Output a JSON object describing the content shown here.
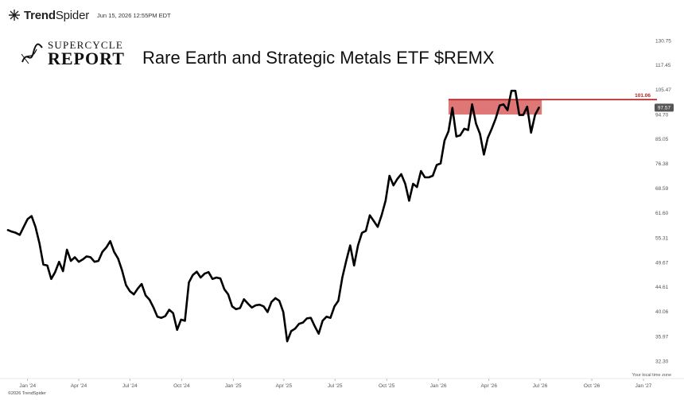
{
  "header": {
    "brand_bold": "Trend",
    "brand_light": "Spider",
    "timestamp": "Jun 15, 2026 12:55PM EDT"
  },
  "logo": {
    "top": "SUPERCYCLE",
    "bottom": "REPORT"
  },
  "footer": {
    "timezone_note": "Your local time zone",
    "copyright": "©2026 TrendSpider"
  },
  "chart_data": {
    "type": "line",
    "title": "Rare Earth and Strategic Metals ETF $REMX",
    "xlabel": "",
    "ylabel": "",
    "y_scale": "log",
    "y_ticks": [
      "130.75",
      "117.45",
      "105.47",
      "94.70",
      "85.05",
      "76.38",
      "68.59",
      "61.60",
      "55.31",
      "49.67",
      "44.61",
      "40.06",
      "35.97",
      "32.30"
    ],
    "x_ticks": [
      "Jan '24",
      "Apr '24",
      "Jul '24",
      "Oct '24",
      "Jan '25",
      "Apr '25",
      "Jul '25",
      "Oct '25",
      "Jan '26",
      "Apr '26",
      "Jul '26",
      "Oct '26",
      "Jan '27"
    ],
    "x_range": [
      "2023-11-27",
      "2027-01-25"
    ],
    "series": [
      {
        "values": [
          [
            "2023-11-27",
            57.2
          ],
          [
            "2023-12-04",
            56.8
          ],
          [
            "2023-12-11",
            56.5
          ],
          [
            "2023-12-18",
            56.0
          ],
          [
            "2023-12-25",
            58.0
          ],
          [
            "2024-01-01",
            60.0
          ],
          [
            "2024-01-08",
            60.8
          ],
          [
            "2024-01-15",
            58.0
          ],
          [
            "2024-01-22",
            54.0
          ],
          [
            "2024-01-29",
            49.2
          ],
          [
            "2024-02-05",
            49.0
          ],
          [
            "2024-02-12",
            46.2
          ],
          [
            "2024-02-19",
            47.6
          ],
          [
            "2024-02-26",
            49.8
          ],
          [
            "2024-03-04",
            47.8
          ],
          [
            "2024-03-11",
            52.5
          ],
          [
            "2024-03-18",
            50.0
          ],
          [
            "2024-03-25",
            50.8
          ],
          [
            "2024-04-01",
            49.8
          ],
          [
            "2024-04-08",
            50.3
          ],
          [
            "2024-04-15",
            51.0
          ],
          [
            "2024-04-22",
            50.8
          ],
          [
            "2024-04-29",
            49.8
          ],
          [
            "2024-05-06",
            50.0
          ],
          [
            "2024-05-13",
            52.0
          ],
          [
            "2024-05-20",
            53.0
          ],
          [
            "2024-05-27",
            54.5
          ],
          [
            "2024-06-03",
            52.0
          ],
          [
            "2024-06-10",
            50.5
          ],
          [
            "2024-06-17",
            48.0
          ],
          [
            "2024-06-24",
            45.0
          ],
          [
            "2024-07-01",
            43.8
          ],
          [
            "2024-07-08",
            43.2
          ],
          [
            "2024-07-15",
            44.3
          ],
          [
            "2024-07-22",
            45.2
          ],
          [
            "2024-07-29",
            43.0
          ],
          [
            "2024-08-05",
            42.2
          ],
          [
            "2024-08-12",
            40.8
          ],
          [
            "2024-08-19",
            39.2
          ],
          [
            "2024-08-26",
            39.0
          ],
          [
            "2024-09-02",
            39.3
          ],
          [
            "2024-09-09",
            40.4
          ],
          [
            "2024-09-16",
            39.8
          ],
          [
            "2024-09-23",
            37.0
          ],
          [
            "2024-09-30",
            38.7
          ],
          [
            "2024-10-07",
            38.5
          ],
          [
            "2024-10-14",
            45.5
          ],
          [
            "2024-10-21",
            47.0
          ],
          [
            "2024-10-28",
            47.7
          ],
          [
            "2024-11-04",
            46.5
          ],
          [
            "2024-11-11",
            47.3
          ],
          [
            "2024-11-18",
            47.6
          ],
          [
            "2024-11-25",
            46.2
          ],
          [
            "2024-12-02",
            46.5
          ],
          [
            "2024-12-09",
            46.3
          ],
          [
            "2024-12-16",
            44.2
          ],
          [
            "2024-12-23",
            43.2
          ],
          [
            "2024-12-30",
            41.0
          ],
          [
            "2025-01-06",
            40.5
          ],
          [
            "2025-01-13",
            40.7
          ],
          [
            "2025-01-20",
            42.3
          ],
          [
            "2025-01-27",
            41.5
          ],
          [
            "2025-02-03",
            40.8
          ],
          [
            "2025-02-10",
            41.2
          ],
          [
            "2025-02-17",
            41.3
          ],
          [
            "2025-02-24",
            41.0
          ],
          [
            "2025-03-03",
            40.0
          ],
          [
            "2025-03-10",
            41.8
          ],
          [
            "2025-03-17",
            42.5
          ],
          [
            "2025-03-24",
            42.0
          ],
          [
            "2025-03-31",
            40.0
          ],
          [
            "2025-04-07",
            35.2
          ],
          [
            "2025-04-14",
            36.8
          ],
          [
            "2025-04-21",
            37.2
          ],
          [
            "2025-04-28",
            38.0
          ],
          [
            "2025-05-05",
            38.2
          ],
          [
            "2025-05-12",
            38.9
          ],
          [
            "2025-05-19",
            39.0
          ],
          [
            "2025-05-26",
            37.6
          ],
          [
            "2025-06-02",
            36.4
          ],
          [
            "2025-06-09",
            38.5
          ],
          [
            "2025-06-16",
            39.2
          ],
          [
            "2025-06-23",
            39.0
          ],
          [
            "2025-06-30",
            41.0
          ],
          [
            "2025-07-07",
            42.0
          ],
          [
            "2025-07-14",
            46.5
          ],
          [
            "2025-07-21",
            50.0
          ],
          [
            "2025-07-28",
            53.5
          ],
          [
            "2025-08-04",
            49.0
          ],
          [
            "2025-08-11",
            53.5
          ],
          [
            "2025-08-18",
            56.5
          ],
          [
            "2025-08-25",
            57.0
          ],
          [
            "2025-09-01",
            61.0
          ],
          [
            "2025-09-08",
            59.5
          ],
          [
            "2025-09-15",
            58.0
          ],
          [
            "2025-09-22",
            61.0
          ],
          [
            "2025-09-29",
            65.0
          ],
          [
            "2025-10-06",
            72.5
          ],
          [
            "2025-10-13",
            69.5
          ],
          [
            "2025-10-20",
            71.5
          ],
          [
            "2025-10-27",
            73.0
          ],
          [
            "2025-11-03",
            70.0
          ],
          [
            "2025-11-10",
            65.0
          ],
          [
            "2025-11-17",
            70.0
          ],
          [
            "2025-11-24",
            69.0
          ],
          [
            "2025-12-01",
            74.0
          ],
          [
            "2025-12-08",
            72.0
          ],
          [
            "2025-12-15",
            72.0
          ],
          [
            "2025-12-22",
            72.5
          ],
          [
            "2025-12-29",
            76.0
          ],
          [
            "2026-01-05",
            76.5
          ],
          [
            "2026-01-12",
            84.5
          ],
          [
            "2026-01-19",
            88.0
          ],
          [
            "2026-01-26",
            97.5
          ],
          [
            "2026-02-02",
            86.0
          ],
          [
            "2026-02-09",
            86.5
          ],
          [
            "2026-02-16",
            89.0
          ],
          [
            "2026-02-23",
            88.5
          ],
          [
            "2026-03-02",
            99.0
          ],
          [
            "2026-03-09",
            91.0
          ],
          [
            "2026-03-16",
            87.0
          ],
          [
            "2026-03-23",
            79.5
          ],
          [
            "2026-03-30",
            85.5
          ],
          [
            "2026-04-06",
            89.0
          ],
          [
            "2026-04-13",
            93.0
          ],
          [
            "2026-04-20",
            98.5
          ],
          [
            "2026-04-27",
            99.0
          ],
          [
            "2026-05-04",
            96.5
          ],
          [
            "2026-05-11",
            105.0
          ],
          [
            "2026-05-18",
            105.0
          ],
          [
            "2026-05-25",
            94.5
          ],
          [
            "2026-06-01",
            94.5
          ],
          [
            "2026-06-08",
            98.0
          ],
          [
            "2026-06-15",
            87.5
          ],
          [
            "2026-06-22",
            94.5
          ],
          [
            "2026-06-29",
            97.57
          ]
        ]
      }
    ],
    "last_value": "97.57",
    "resistance": {
      "level": 101.06,
      "label": "101.06",
      "zone_low": 94.7,
      "zone_high": 101.06,
      "zone_start": "2026-01-19",
      "zone_end": "2026-07-04"
    }
  },
  "colors": {
    "line": "#000000",
    "zone_fill": "#d95f5f",
    "zone_line": "#b52424",
    "price_tag": "#555555"
  }
}
